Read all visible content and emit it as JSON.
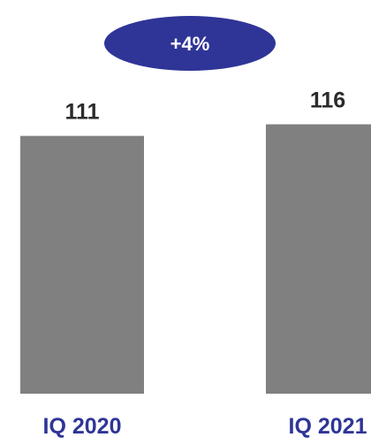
{
  "change_badge": {
    "label": "+4%",
    "color": "#2f3597"
  },
  "chart_data": {
    "type": "bar",
    "categories": [
      "IQ 2020",
      "IQ 2021"
    ],
    "values": [
      111,
      116
    ],
    "data_labels": [
      "111",
      "116"
    ],
    "ylim": [
      0,
      120
    ],
    "grid": false,
    "legend": "none",
    "bar_color": "#808080",
    "category_label_color": "#2f3597",
    "value_label_color": "#2b2b2b"
  }
}
